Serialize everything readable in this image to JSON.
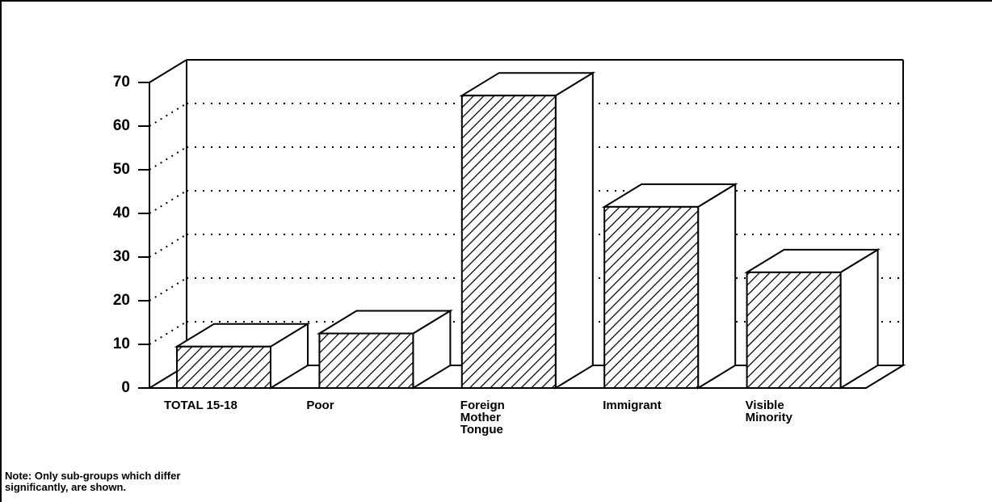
{
  "chart_data": {
    "type": "bar3d",
    "categories": [
      "TOTAL 15-18",
      "Poor",
      "Foreign Mother Tongue",
      "Immigrant",
      "Visible Minority"
    ],
    "values": [
      9.5,
      12.5,
      67,
      41.5,
      26.5
    ],
    "color": "#000000",
    "ylim": [
      0,
      70
    ],
    "yticks": [
      0,
      10,
      20,
      30,
      40,
      50,
      60,
      70
    ],
    "grid": true,
    "note": "Note: Only sub-groups which differ significantly, are shown."
  }
}
